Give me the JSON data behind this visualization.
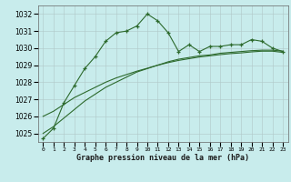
{
  "title": "Graphe pression niveau de la mer (hPa)",
  "bg_color": "#c8ecec",
  "line_color": "#2d6a2d",
  "x_labels": [
    "0",
    "1",
    "2",
    "3",
    "4",
    "5",
    "6",
    "7",
    "8",
    "9",
    "10",
    "11",
    "12",
    "13",
    "14",
    "15",
    "16",
    "17",
    "18",
    "19",
    "20",
    "21",
    "22",
    "23"
  ],
  "ylim": [
    1024.5,
    1032.5
  ],
  "yticks": [
    1025,
    1026,
    1027,
    1028,
    1029,
    1030,
    1031,
    1032
  ],
  "series": {
    "line1_markers": [
      1024.7,
      1025.3,
      1026.8,
      1027.8,
      1028.8,
      1029.5,
      1030.4,
      1030.9,
      1031.0,
      1031.3,
      1032.0,
      1031.6,
      1030.9,
      1029.8,
      1030.2,
      1029.8,
      1030.1,
      1030.1,
      1030.2,
      1030.2,
      1030.5,
      1030.4,
      1030.0,
      1029.8
    ],
    "line2_smooth": [
      1025.0,
      1025.4,
      1025.9,
      1026.4,
      1026.9,
      1027.3,
      1027.7,
      1028.0,
      1028.3,
      1028.6,
      1028.8,
      1029.0,
      1029.2,
      1029.35,
      1029.45,
      1029.55,
      1029.6,
      1029.7,
      1029.75,
      1029.8,
      1029.85,
      1029.88,
      1029.88,
      1029.82
    ],
    "line3_smooth": [
      1026.0,
      1026.3,
      1026.7,
      1027.1,
      1027.4,
      1027.7,
      1028.0,
      1028.25,
      1028.45,
      1028.65,
      1028.82,
      1029.0,
      1029.15,
      1029.28,
      1029.38,
      1029.48,
      1029.55,
      1029.62,
      1029.68,
      1029.72,
      1029.78,
      1029.82,
      1029.82,
      1029.75
    ]
  }
}
